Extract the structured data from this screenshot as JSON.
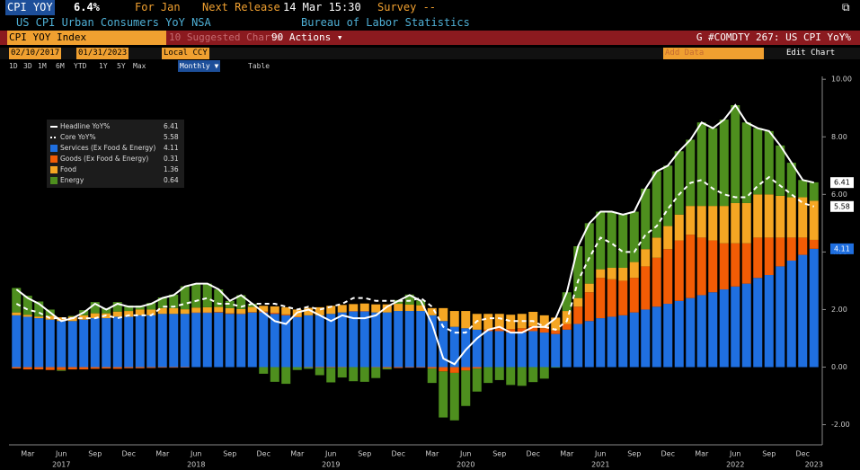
{
  "header": {
    "ticker": "CPI YOY",
    "last": "6.4%",
    "period": "For Jan",
    "next_release_label": "Next Release",
    "next_release": "14 Mar 15:30",
    "survey": "Survey --",
    "description": "US CPI Urban Consumers YoY NSA",
    "source": "Bureau of Labor Statistics"
  },
  "toolbar": {
    "security": "CPI YOY Index",
    "suggested": "10 Suggested Charts",
    "actions": "90 Actions ▾",
    "chart_id": "G #COMDTY 267: US CPI YoY%",
    "start_date": "02/10/2017",
    "end_date": "01/31/2023",
    "currency": "Local CCY",
    "add_data": "Add Data",
    "edit_chart": "Edit Chart",
    "ranges": [
      "1D",
      "3D",
      "1M",
      "6M",
      "YTD",
      "1Y",
      "5Y",
      "Max"
    ],
    "frequency": "Monthly ▼",
    "table": "Table"
  },
  "chart_data": {
    "type": "bar",
    "stacked": true,
    "grid": false,
    "legend": "top-left",
    "categories": [
      null,
      "Mar",
      null,
      null,
      "Jun",
      null,
      null,
      "Sep",
      null,
      null,
      "Dec",
      null,
      null,
      "Mar",
      null,
      null,
      "Jun",
      null,
      null,
      "Sep",
      null,
      null,
      "Dec",
      null,
      null,
      "Mar",
      null,
      null,
      "Jun",
      null,
      null,
      "Sep",
      null,
      null,
      "Dec",
      null,
      null,
      "Mar",
      null,
      null,
      "Jun",
      null,
      null,
      "Sep",
      null,
      null,
      "Dec",
      null,
      null,
      "Mar",
      null,
      null,
      "Jun",
      null,
      null,
      "Sep",
      null,
      null,
      "Dec",
      null,
      null,
      "Mar",
      null,
      null,
      "Jun",
      null,
      null,
      "Sep",
      null,
      null,
      "Dec",
      null
    ],
    "category_years": [
      null,
      null,
      null,
      null,
      "2017",
      null,
      null,
      null,
      null,
      null,
      null,
      null,
      null,
      null,
      null,
      null,
      "2018",
      null,
      null,
      null,
      null,
      null,
      null,
      null,
      null,
      null,
      null,
      null,
      "2019",
      null,
      null,
      null,
      null,
      null,
      null,
      null,
      null,
      null,
      null,
      null,
      "2020",
      null,
      null,
      null,
      null,
      null,
      null,
      null,
      null,
      null,
      null,
      null,
      "2021",
      null,
      null,
      null,
      null,
      null,
      null,
      null,
      null,
      null,
      null,
      null,
      "2022",
      null,
      null,
      null,
      null,
      null,
      null,
      "2023"
    ],
    "ylim": [
      -2.7,
      10.1
    ],
    "yticks": [
      {
        "value": -2,
        "label": "-2.00"
      },
      {
        "value": 0,
        "label": "0.00"
      },
      {
        "value": 2,
        "label": "2.00"
      },
      {
        "value": 4,
        "label": "4.00"
      },
      {
        "value": 6,
        "label": "6.00"
      },
      {
        "value": 8,
        "label": "8.00"
      },
      {
        "value": 10,
        "label": "10.00"
      }
    ],
    "series": [
      {
        "name": "Headline YoY%",
        "kind": "line",
        "dashed": false,
        "color": "#ffffff",
        "legend_value": "6.41",
        "last_tag": "6.41",
        "values": [
          2.7,
          2.4,
          2.2,
          1.9,
          1.6,
          1.7,
          1.9,
          2.2,
          2.0,
          2.2,
          2.1,
          2.1,
          2.2,
          2.4,
          2.5,
          2.8,
          2.9,
          2.9,
          2.7,
          2.3,
          2.5,
          2.2,
          1.9,
          1.6,
          1.5,
          1.9,
          2.0,
          1.8,
          1.6,
          1.8,
          1.7,
          1.7,
          1.8,
          2.1,
          2.3,
          2.5,
          2.3,
          1.5,
          0.3,
          0.1,
          0.6,
          1.0,
          1.3,
          1.4,
          1.2,
          1.2,
          1.4,
          1.4,
          1.7,
          2.6,
          4.2,
          5.0,
          5.4,
          5.4,
          5.3,
          5.4,
          6.2,
          6.8,
          7.0,
          7.5,
          7.9,
          8.5,
          8.3,
          8.6,
          9.1,
          8.5,
          8.3,
          8.2,
          7.7,
          7.1,
          6.5,
          6.41
        ]
      },
      {
        "name": "Core YoY%",
        "kind": "line",
        "dashed": true,
        "color": "#ffffff",
        "legend_value": "5.58",
        "last_tag": "5.58",
        "values": [
          2.2,
          2.0,
          1.9,
          1.7,
          1.7,
          1.7,
          1.7,
          1.7,
          1.8,
          1.7,
          1.8,
          1.8,
          1.8,
          2.1,
          2.1,
          2.2,
          2.3,
          2.4,
          2.2,
          2.2,
          2.1,
          2.2,
          2.2,
          2.2,
          2.1,
          2.0,
          2.1,
          2.0,
          2.1,
          2.2,
          2.4,
          2.4,
          2.3,
          2.3,
          2.3,
          2.3,
          2.4,
          2.1,
          1.4,
          1.2,
          1.2,
          1.6,
          1.7,
          1.7,
          1.6,
          1.6,
          1.6,
          1.4,
          1.3,
          1.6,
          3.0,
          3.8,
          4.5,
          4.3,
          4.0,
          4.0,
          4.6,
          4.9,
          5.5,
          6.0,
          6.4,
          6.5,
          6.2,
          6.0,
          5.9,
          5.9,
          6.3,
          6.6,
          6.3,
          6.0,
          5.7,
          5.58
        ]
      },
      {
        "name": "Services (Ex Food & Energy)",
        "kind": "bar",
        "color": "#1f6fe0",
        "legend_value": "4.11",
        "last_tag": "4.11",
        "values": [
          1.8,
          1.75,
          1.7,
          1.65,
          1.6,
          1.6,
          1.65,
          1.7,
          1.7,
          1.75,
          1.75,
          1.8,
          1.8,
          1.85,
          1.85,
          1.85,
          1.9,
          1.9,
          1.9,
          1.85,
          1.85,
          1.9,
          1.9,
          1.85,
          1.8,
          1.75,
          1.8,
          1.8,
          1.85,
          1.9,
          1.95,
          1.95,
          1.9,
          1.9,
          1.95,
          1.95,
          1.95,
          1.8,
          1.6,
          1.4,
          1.35,
          1.3,
          1.25,
          1.25,
          1.2,
          1.2,
          1.25,
          1.2,
          1.15,
          1.3,
          1.5,
          1.6,
          1.7,
          1.75,
          1.8,
          1.9,
          2.0,
          2.1,
          2.2,
          2.3,
          2.4,
          2.5,
          2.6,
          2.7,
          2.8,
          2.9,
          3.1,
          3.2,
          3.5,
          3.7,
          3.9,
          4.11
        ]
      },
      {
        "name": "Goods (Ex Food & Energy)",
        "kind": "bar",
        "color": "#f25c05",
        "legend_value": "0.31",
        "values": [
          -0.05,
          -0.08,
          -0.08,
          -0.1,
          -0.1,
          -0.08,
          -0.08,
          -0.06,
          -0.05,
          -0.06,
          -0.04,
          -0.04,
          -0.03,
          -0.02,
          -0.02,
          -0.01,
          0.0,
          0.0,
          0.02,
          0.02,
          0.01,
          0.01,
          0.03,
          0.04,
          0.03,
          0.0,
          -0.01,
          -0.02,
          -0.02,
          -0.01,
          0.0,
          0.0,
          -0.01,
          -0.03,
          -0.03,
          -0.02,
          -0.02,
          -0.05,
          -0.15,
          -0.2,
          -0.12,
          -0.05,
          0.05,
          0.1,
          0.12,
          0.15,
          0.17,
          0.15,
          0.12,
          0.2,
          0.6,
          1.0,
          1.4,
          1.3,
          1.2,
          1.2,
          1.5,
          1.7,
          1.9,
          2.1,
          2.2,
          2.0,
          1.8,
          1.6,
          1.5,
          1.4,
          1.4,
          1.3,
          1.0,
          0.8,
          0.6,
          0.31
        ]
      },
      {
        "name": "Food",
        "kind": "bar",
        "color": "#f5a623",
        "legend_value": "1.36",
        "values": [
          0.1,
          0.07,
          0.06,
          0.13,
          0.13,
          0.15,
          0.15,
          0.17,
          0.17,
          0.18,
          0.2,
          0.2,
          0.2,
          0.2,
          0.2,
          0.16,
          0.17,
          0.18,
          0.17,
          0.18,
          0.16,
          0.18,
          0.2,
          0.22,
          0.25,
          0.25,
          0.26,
          0.28,
          0.28,
          0.26,
          0.24,
          0.26,
          0.28,
          0.28,
          0.25,
          0.22,
          0.2,
          0.25,
          0.45,
          0.55,
          0.6,
          0.55,
          0.55,
          0.5,
          0.5,
          0.5,
          0.5,
          0.45,
          0.45,
          0.45,
          0.3,
          0.3,
          0.3,
          0.4,
          0.45,
          0.55,
          0.6,
          0.7,
          0.8,
          0.9,
          1.0,
          1.1,
          1.2,
          1.3,
          1.4,
          1.4,
          1.5,
          1.5,
          1.45,
          1.4,
          1.4,
          1.36
        ]
      },
      {
        "name": "Energy",
        "kind": "bar",
        "color": "#4e8f1e",
        "legend_value": "0.64",
        "values": [
          0.85,
          0.66,
          0.52,
          0.22,
          -0.03,
          0.03,
          0.18,
          0.39,
          0.18,
          0.33,
          0.19,
          0.14,
          0.23,
          0.37,
          0.47,
          0.8,
          0.83,
          0.82,
          0.61,
          0.25,
          0.48,
          0.11,
          -0.23,
          -0.51,
          -0.58,
          -0.1,
          -0.05,
          -0.26,
          -0.51,
          -0.35,
          -0.49,
          -0.51,
          -0.37,
          -0.05,
          0.13,
          0.35,
          0.17,
          -0.5,
          -1.6,
          -1.65,
          -1.23,
          -0.8,
          -0.55,
          -0.45,
          -0.62,
          -0.65,
          -0.52,
          -0.4,
          -0.02,
          0.65,
          1.8,
          2.1,
          2.0,
          1.95,
          1.85,
          1.75,
          2.1,
          2.3,
          2.1,
          2.2,
          2.3,
          2.9,
          2.7,
          3.0,
          3.4,
          2.8,
          2.3,
          2.2,
          1.75,
          1.2,
          0.6,
          0.64
        ]
      }
    ]
  }
}
